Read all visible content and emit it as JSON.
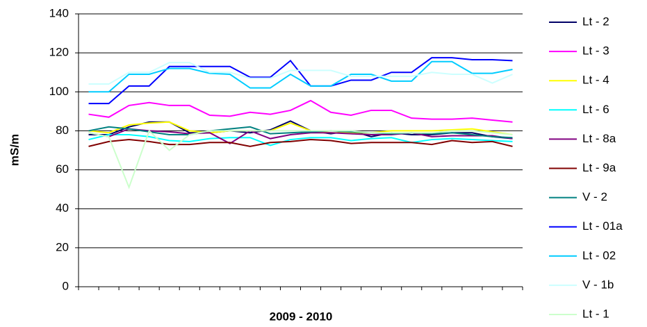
{
  "chart_data": {
    "type": "line",
    "y_label": "mS/m",
    "x_label": "2009 - 2010",
    "categories": [
      null,
      null,
      null,
      null,
      null,
      null,
      null,
      null,
      null,
      null,
      null,
      null,
      null,
      null,
      null,
      null,
      null,
      null,
      null,
      null,
      null,
      null
    ],
    "ylim": [
      0,
      140
    ],
    "yticks": [
      0,
      20,
      40,
      60,
      80,
      100,
      120,
      140
    ],
    "grid": true,
    "legend": "right",
    "series": [
      {
        "name": "Lt - 2",
        "color": "#000066",
        "values": [
          78,
          78,
          82,
          84.5,
          84.5,
          79,
          79,
          80,
          79,
          80.5,
          85,
          80,
          78.5,
          80,
          77,
          79,
          78,
          78,
          79,
          79,
          77,
          76
        ]
      },
      {
        "name": "Lt - 3",
        "color": "#ff00ff",
        "values": [
          88.5,
          87,
          93,
          94.5,
          93,
          93,
          88,
          87.5,
          89.5,
          88.5,
          90.5,
          95.5,
          89.5,
          88,
          90.5,
          90.5,
          86.5,
          86,
          86,
          86.5,
          85.5,
          84.5
        ]
      },
      {
        "name": "Lt - 4",
        "color": "#ffff00",
        "values": [
          80,
          79,
          83,
          84,
          84.5,
          80,
          79,
          80,
          80,
          80,
          84,
          80,
          79,
          79,
          79,
          80,
          80,
          80,
          80.5,
          81,
          79.5,
          78
        ]
      },
      {
        "name": "Lt - 6",
        "color": "#00ffff",
        "values": [
          75.5,
          78,
          78,
          77,
          75,
          74.5,
          76,
          76.5,
          76.5,
          72.5,
          75.5,
          76.5,
          76.5,
          75,
          76,
          76.5,
          74,
          75.5,
          76,
          75.5,
          75,
          74.5
        ]
      },
      {
        "name": "Lt - 8a",
        "color": "#800080",
        "values": [
          79,
          77,
          81,
          80,
          79.5,
          78.5,
          79,
          73.5,
          80,
          76,
          78,
          79,
          79,
          78.5,
          78,
          78,
          79,
          77,
          77.5,
          77.5,
          77.5,
          76
        ]
      },
      {
        "name": "Lt - 9a",
        "color": "#800000",
        "values": [
          72,
          74.5,
          75.5,
          74.5,
          73,
          73,
          74,
          74,
          72,
          74,
          74.5,
          75.5,
          75,
          73.5,
          74,
          74,
          74,
          73,
          75,
          74,
          74.5,
          72
        ]
      },
      {
        "name": "V - 2",
        "color": "#008080",
        "values": [
          80,
          82,
          81,
          79.5,
          78,
          78,
          80,
          81,
          82,
          78.5,
          79,
          79.5,
          80,
          79.5,
          79,
          78.5,
          79,
          78.5,
          79,
          78,
          77,
          76.5
        ]
      },
      {
        "name": "Lt - 01a",
        "color": "#0000ff",
        "values": [
          94,
          94,
          103,
          103,
          113,
          113,
          113,
          113,
          107.5,
          107.5,
          116,
          103,
          103,
          106,
          106,
          110,
          110,
          117.5,
          117.5,
          116.5,
          116.5,
          116
        ]
      },
      {
        "name": "Lt - 02",
        "color": "#00ccff",
        "values": [
          100,
          100,
          109,
          109,
          112,
          112,
          109.5,
          109,
          102,
          102,
          109,
          103,
          103,
          109,
          109,
          105.5,
          105.5,
          115.5,
          115.5,
          109.5,
          109.5,
          111.5
        ]
      },
      {
        "name": "V - 1b",
        "color": "#ccffff",
        "values": [
          104,
          104,
          110,
          110,
          115,
          115,
          110,
          110,
          107,
          107,
          111,
          111,
          111,
          108,
          108,
          108,
          108,
          110,
          109,
          109,
          104.5,
          109
        ]
      },
      {
        "name": "Lt - 1",
        "color": "#ccffcc",
        "values": [
          79,
          77,
          51,
          80,
          70,
          78,
          80,
          80,
          80,
          80,
          80,
          80,
          80,
          80,
          79,
          79,
          79,
          79,
          80,
          80,
          79,
          78
        ]
      }
    ]
  }
}
